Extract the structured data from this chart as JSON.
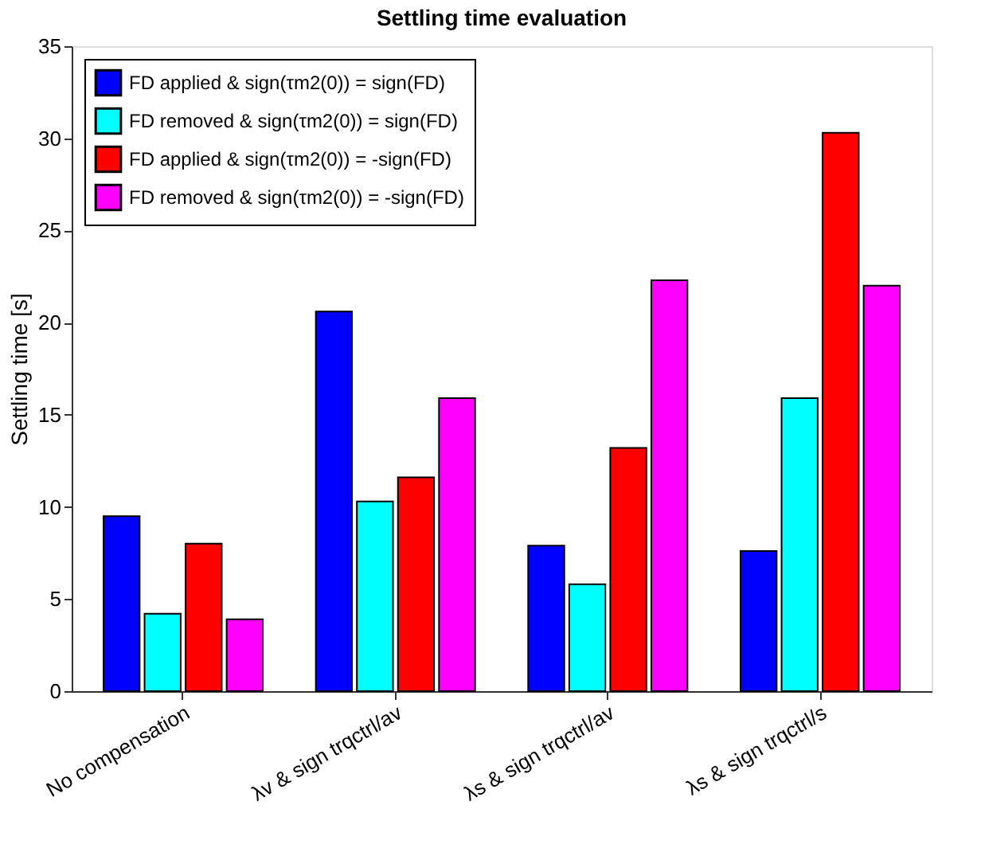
{
  "chart_data": {
    "type": "bar",
    "title": "Settling time evaluation",
    "ylabel": "Settling time [s]",
    "categories": [
      "No compensation",
      "λv & sign trqctrl/av",
      "λs & sign trqctrl/av",
      "λs & sign trqctrl/s"
    ],
    "series": [
      {
        "name": "FD applied & sign(τm2(0)) = sign(FD)",
        "color": "#0000ff",
        "values": [
          9.5,
          20.6,
          7.9,
          7.6
        ]
      },
      {
        "name": "FD removed & sign(τm2(0)) = sign(FD)",
        "color": "#00ffff",
        "values": [
          4.2,
          10.3,
          5.8,
          15.9
        ]
      },
      {
        "name": "FD applied & sign(τm2(0)) = -sign(FD)",
        "color": "#ff0000",
        "values": [
          8.0,
          11.6,
          13.2,
          30.3
        ]
      },
      {
        "name": "FD removed & sign(τm2(0)) = -sign(FD)",
        "color": "#ff00ff",
        "values": [
          3.9,
          15.9,
          22.3,
          22.0
        ]
      }
    ],
    "ylim": [
      0,
      35
    ],
    "yticks": [
      0,
      5,
      10,
      15,
      20,
      25,
      30,
      35
    ],
    "grid": false,
    "legend": "top left"
  }
}
